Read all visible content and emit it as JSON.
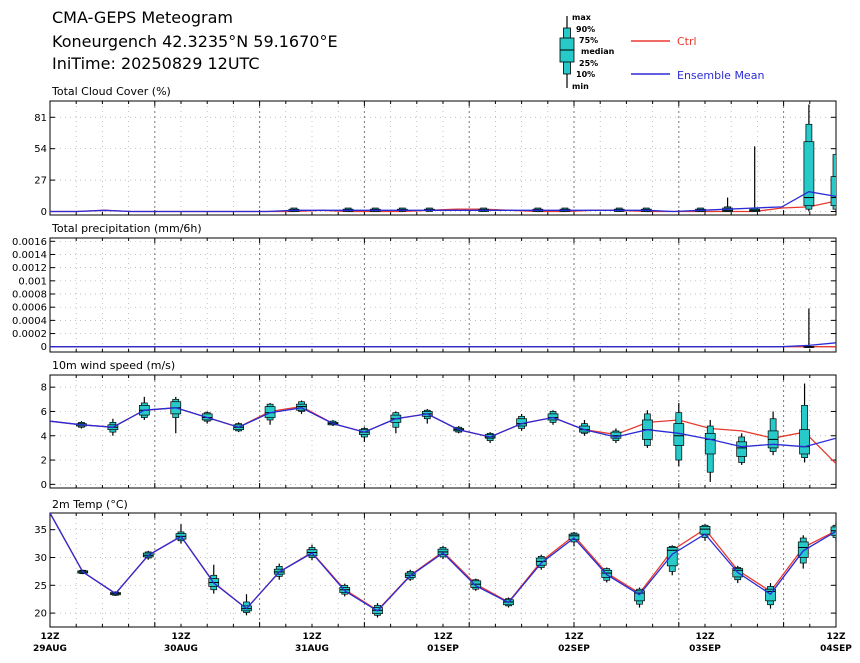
{
  "header": {
    "line1": "CMA-GEPS Meteogram",
    "line2": "Koneurgench 42.3235°N 59.1670°E",
    "line3": "IniTime: 20250829 12UTC"
  },
  "legend": {
    "box_labels": [
      "max",
      "90%",
      "75%",
      "median",
      "25%",
      "10%",
      "min"
    ],
    "ctrl": "Ctrl",
    "mean": "Ensemble Mean",
    "ctrl_color": "#e8392f",
    "mean_color": "#2b2bd6",
    "box_color": "#27c9c9"
  },
  "x_ticks": [
    {
      "hour": "12Z",
      "date": "29AUG"
    },
    {
      "hour": "12Z",
      "date": "30AUG"
    },
    {
      "hour": "12Z",
      "date": "31AUG"
    },
    {
      "hour": "12Z",
      "date": "01SEP"
    },
    {
      "hour": "12Z",
      "date": "02SEP"
    },
    {
      "hour": "12Z",
      "date": "03SEP"
    },
    {
      "hour": "12Z",
      "date": "04SEP"
    }
  ],
  "chart_data": [
    {
      "type": "box",
      "title": "Total Cloud Cover (%)",
      "ylim": [
        -3,
        95
      ],
      "yticks": [
        "0",
        "27",
        "54",
        "81"
      ],
      "ctrl": [
        0,
        0,
        1,
        0,
        0,
        0,
        0,
        0,
        0,
        0,
        1,
        0,
        0,
        0,
        1,
        2,
        2,
        1,
        0,
        0,
        1,
        1,
        0,
        0,
        0,
        0,
        0,
        3,
        4,
        9
      ],
      "mean": [
        0,
        0,
        1,
        0,
        0,
        0,
        0,
        0,
        0,
        1,
        1,
        1,
        1,
        1,
        1,
        1,
        1,
        1,
        1,
        1,
        1,
        1,
        1,
        0,
        1,
        2,
        3,
        4,
        17,
        13
      ],
      "boxes": [
        {
          "i": 9,
          "min": 0,
          "p10": 0,
          "p25": 0,
          "med": 1,
          "p75": 2,
          "p90": 3,
          "max": 3
        },
        {
          "i": 11,
          "min": 0,
          "p10": 0,
          "p25": 0,
          "med": 1,
          "p75": 2,
          "p90": 3,
          "max": 3
        },
        {
          "i": 12,
          "min": 0,
          "p10": 0,
          "p25": 0,
          "med": 1,
          "p75": 2,
          "p90": 3,
          "max": 3
        },
        {
          "i": 13,
          "min": 0,
          "p10": 0,
          "p25": 1,
          "med": 1,
          "p75": 2,
          "p90": 3,
          "max": 3
        },
        {
          "i": 14,
          "min": 0,
          "p10": 0,
          "p25": 1,
          "med": 1,
          "p75": 2,
          "p90": 3,
          "max": 3
        },
        {
          "i": 16,
          "min": 0,
          "p10": 0,
          "p25": 0,
          "med": 1,
          "p75": 2,
          "p90": 3,
          "max": 3
        },
        {
          "i": 18,
          "min": 0,
          "p10": 0,
          "p25": 0,
          "med": 1,
          "p75": 2,
          "p90": 3,
          "max": 3
        },
        {
          "i": 19,
          "min": 0,
          "p10": 0,
          "p25": 0,
          "med": 1,
          "p75": 2,
          "p90": 3,
          "max": 3
        },
        {
          "i": 21,
          "min": 0,
          "p10": 0,
          "p25": 0,
          "med": 1,
          "p75": 2,
          "p90": 3,
          "max": 3
        },
        {
          "i": 22,
          "min": 0,
          "p10": 0,
          "p25": 0,
          "med": 1,
          "p75": 2,
          "p90": 3,
          "max": 3
        },
        {
          "i": 24,
          "min": 0,
          "p10": 0,
          "p25": 0,
          "med": 1,
          "p75": 2,
          "p90": 3,
          "max": 3
        },
        {
          "i": 25,
          "min": 0,
          "p10": 0,
          "p25": 0,
          "med": 1,
          "p75": 3,
          "p90": 4,
          "max": 12
        },
        {
          "i": 26,
          "min": 0,
          "p10": 0,
          "p25": 0,
          "med": 1,
          "p75": 2,
          "p90": 3,
          "max": 56
        },
        {
          "i": 28,
          "min": 0,
          "p10": 2,
          "p25": 5,
          "med": 12,
          "p75": 60,
          "p90": 75,
          "max": 92
        },
        {
          "i": 29,
          "min": 0,
          "p10": 2,
          "p25": 5,
          "med": 12,
          "p75": 30,
          "p90": 49,
          "max": 49
        }
      ]
    },
    {
      "type": "box",
      "title": "Total precipitation (mm/6h)",
      "ylim": [
        -8e-05,
        0.00165
      ],
      "yticks": [
        "0",
        "0.0002",
        "0.0004",
        "0.0006",
        "0.0008",
        "0.001",
        "0.0012",
        "0.0014",
        "0.0016"
      ],
      "ctrl": [
        0,
        0,
        0,
        0,
        0,
        0,
        0,
        0,
        0,
        0,
        0,
        0,
        0,
        0,
        0,
        0,
        0,
        0,
        0,
        0,
        0,
        0,
        0,
        0,
        0,
        0,
        0,
        0,
        0,
        0
      ],
      "mean": [
        0,
        0,
        0,
        0,
        0,
        0,
        0,
        0,
        0,
        0,
        0,
        0,
        0,
        0,
        0,
        0,
        0,
        0,
        0,
        0,
        0,
        0,
        0,
        0,
        0,
        0,
        0,
        0,
        2e-05,
        6e-05
      ],
      "boxes": [
        {
          "i": 28,
          "min": 0,
          "p10": 0,
          "p25": 0,
          "med": 0,
          "p75": 0,
          "p90": 0,
          "max": 0.00058
        }
      ]
    },
    {
      "type": "box",
      "title": "10m wind speed (m/s)",
      "ylim": [
        -0.3,
        9
      ],
      "yticks": [
        "0",
        "2",
        "4",
        "6",
        "8"
      ],
      "ctrl": [
        5.2,
        4.9,
        4.7,
        6.1,
        6.3,
        5.5,
        4.7,
        6.0,
        6.4,
        5.0,
        4.3,
        5.4,
        5.8,
        4.5,
        3.9,
        5.0,
        5.5,
        4.5,
        4.1,
        5.1,
        5.3,
        4.6,
        4.4,
        3.8,
        4.3,
        1.7
      ],
      "mean": [
        5.2,
        4.9,
        4.7,
        6.1,
        6.3,
        5.5,
        4.7,
        5.9,
        6.3,
        5.0,
        4.3,
        5.4,
        5.8,
        4.5,
        3.9,
        5.0,
        5.5,
        4.5,
        3.9,
        4.5,
        4.2,
        3.7,
        3.1,
        3.3,
        3.1,
        3.8
      ],
      "boxes": [
        {
          "i": 1,
          "min": 4.6,
          "p10": 4.7,
          "p25": 4.8,
          "med": 4.9,
          "p75": 5.0,
          "p90": 5.1,
          "max": 5.2
        },
        {
          "i": 2,
          "min": 4.0,
          "p10": 4.3,
          "p25": 4.5,
          "med": 4.7,
          "p75": 4.9,
          "p90": 5.1,
          "max": 5.4
        },
        {
          "i": 3,
          "min": 5.3,
          "p10": 5.5,
          "p25": 5.7,
          "med": 6.1,
          "p75": 6.5,
          "p90": 6.7,
          "max": 7.2
        },
        {
          "i": 4,
          "min": 4.2,
          "p10": 5.5,
          "p25": 5.8,
          "med": 6.3,
          "p75": 6.8,
          "p90": 7.0,
          "max": 7.2
        },
        {
          "i": 5,
          "min": 5.0,
          "p10": 5.2,
          "p25": 5.3,
          "med": 5.5,
          "p75": 5.8,
          "p90": 5.9,
          "max": 6.0
        },
        {
          "i": 6,
          "min": 4.3,
          "p10": 4.4,
          "p25": 4.5,
          "med": 4.7,
          "p75": 4.9,
          "p90": 5.0,
          "max": 5.1
        },
        {
          "i": 7,
          "min": 4.9,
          "p10": 5.3,
          "p25": 5.5,
          "med": 5.9,
          "p75": 6.4,
          "p90": 6.6,
          "max": 6.7
        },
        {
          "i": 8,
          "min": 5.8,
          "p10": 6.0,
          "p25": 6.1,
          "med": 6.4,
          "p75": 6.6,
          "p90": 6.8,
          "max": 6.9
        },
        {
          "i": 9,
          "min": 4.8,
          "p10": 4.9,
          "p25": 4.9,
          "med": 5.0,
          "p75": 5.1,
          "p90": 5.2,
          "max": 5.3
        },
        {
          "i": 10,
          "min": 3.5,
          "p10": 3.9,
          "p25": 4.1,
          "med": 4.3,
          "p75": 4.5,
          "p90": 4.6,
          "max": 4.7
        },
        {
          "i": 11,
          "min": 4.2,
          "p10": 4.7,
          "p25": 5.1,
          "med": 5.4,
          "p75": 5.7,
          "p90": 5.9,
          "max": 6.0
        },
        {
          "i": 12,
          "min": 5.0,
          "p10": 5.4,
          "p25": 5.6,
          "med": 5.8,
          "p75": 6.0,
          "p90": 6.1,
          "max": 6.2
        },
        {
          "i": 13,
          "min": 4.2,
          "p10": 4.3,
          "p25": 4.4,
          "med": 4.5,
          "p75": 4.6,
          "p90": 4.7,
          "max": 4.8
        },
        {
          "i": 14,
          "min": 3.4,
          "p10": 3.6,
          "p25": 3.8,
          "med": 3.9,
          "p75": 4.1,
          "p90": 4.2,
          "max": 4.3
        },
        {
          "i": 15,
          "min": 4.4,
          "p10": 4.6,
          "p25": 4.8,
          "med": 5.0,
          "p75": 5.4,
          "p90": 5.6,
          "max": 5.8
        },
        {
          "i": 16,
          "min": 4.9,
          "p10": 5.1,
          "p25": 5.3,
          "med": 5.5,
          "p75": 5.8,
          "p90": 6.0,
          "max": 6.1
        },
        {
          "i": 17,
          "min": 4.0,
          "p10": 4.2,
          "p25": 4.3,
          "med": 4.5,
          "p75": 4.8,
          "p90": 5.0,
          "max": 5.3
        },
        {
          "i": 18,
          "min": 3.4,
          "p10": 3.6,
          "p25": 3.8,
          "med": 4.0,
          "p75": 4.3,
          "p90": 4.4,
          "max": 4.6
        },
        {
          "i": 19,
          "min": 3.0,
          "p10": 3.2,
          "p25": 3.7,
          "med": 4.5,
          "p75": 5.3,
          "p90": 5.8,
          "max": 6.1
        },
        {
          "i": 20,
          "min": 1.5,
          "p10": 2.0,
          "p25": 3.2,
          "med": 4.0,
          "p75": 5.0,
          "p90": 5.9,
          "max": 6.7
        },
        {
          "i": 21,
          "min": 0.2,
          "p10": 1.0,
          "p25": 2.5,
          "med": 3.7,
          "p75": 4.2,
          "p90": 4.8,
          "max": 5.3
        },
        {
          "i": 22,
          "min": 1.6,
          "p10": 1.8,
          "p25": 2.3,
          "med": 3.0,
          "p75": 3.5,
          "p90": 3.9,
          "max": 4.2
        },
        {
          "i": 23,
          "min": 2.4,
          "p10": 2.7,
          "p25": 3.0,
          "med": 3.7,
          "p75": 4.4,
          "p90": 5.4,
          "max": 6.0
        },
        {
          "i": 24,
          "min": 1.8,
          "p10": 2.2,
          "p25": 2.5,
          "med": 3.1,
          "p75": 4.5,
          "p90": 6.5,
          "max": 8.3
        }
      ]
    },
    {
      "type": "box",
      "title": "2m Temp (°C)",
      "ylim": [
        17.5,
        38
      ],
      "yticks": [
        "20",
        "25",
        "30",
        "35"
      ],
      "ctrl": [
        38.0,
        27.4,
        23.5,
        30.4,
        33.8,
        25.5,
        20.8,
        27.4,
        30.9,
        24.2,
        20.5,
        26.8,
        31.0,
        25.2,
        22.0,
        29.3,
        33.9,
        27.2,
        23.6,
        31.3,
        35.1,
        27.7,
        23.9,
        31.8,
        34.8
      ],
      "mean": [
        38.0,
        27.4,
        23.5,
        30.4,
        33.8,
        25.4,
        20.8,
        27.4,
        30.8,
        24.0,
        20.4,
        26.7,
        30.8,
        24.9,
        21.9,
        29.0,
        33.5,
        26.9,
        23.3,
        30.6,
        34.2,
        27.3,
        23.4,
        31.2,
        34.7
      ],
      "boxes": [
        {
          "i": 1,
          "min": 27.0,
          "p10": 27.1,
          "p25": 27.2,
          "med": 27.4,
          "p75": 27.6,
          "p90": 27.7,
          "max": 27.8
        },
        {
          "i": 2,
          "min": 23.1,
          "p10": 23.2,
          "p25": 23.3,
          "med": 23.5,
          "p75": 23.7,
          "p90": 23.8,
          "max": 23.9
        },
        {
          "i": 3,
          "min": 29.6,
          "p10": 29.9,
          "p25": 30.1,
          "med": 30.4,
          "p75": 30.8,
          "p90": 31.0,
          "max": 31.2
        },
        {
          "i": 4,
          "min": 32.5,
          "p10": 33.0,
          "p25": 33.3,
          "med": 33.8,
          "p75": 34.3,
          "p90": 34.6,
          "max": 36.0
        },
        {
          "i": 5,
          "min": 23.5,
          "p10": 24.2,
          "p25": 24.8,
          "med": 25.5,
          "p75": 26.2,
          "p90": 26.8,
          "max": 28.7
        },
        {
          "i": 6,
          "min": 19.6,
          "p10": 20.1,
          "p25": 20.4,
          "med": 20.8,
          "p75": 21.3,
          "p90": 22.0,
          "max": 23.4
        },
        {
          "i": 7,
          "min": 26.0,
          "p10": 26.6,
          "p25": 27.0,
          "med": 27.4,
          "p75": 27.9,
          "p90": 28.4,
          "max": 28.9
        },
        {
          "i": 8,
          "min": 29.5,
          "p10": 30.0,
          "p25": 30.3,
          "med": 30.9,
          "p75": 31.4,
          "p90": 31.8,
          "max": 32.3
        },
        {
          "i": 9,
          "min": 23.0,
          "p10": 23.4,
          "p25": 23.7,
          "med": 24.2,
          "p75": 24.6,
          "p90": 25.0,
          "max": 25.3
        },
        {
          "i": 10,
          "min": 19.2,
          "p10": 19.6,
          "p25": 19.9,
          "med": 20.5,
          "p75": 21.0,
          "p90": 21.4,
          "max": 21.8
        },
        {
          "i": 11,
          "min": 25.8,
          "p10": 26.1,
          "p25": 26.4,
          "med": 26.8,
          "p75": 27.2,
          "p90": 27.5,
          "max": 27.8
        },
        {
          "i": 12,
          "min": 29.7,
          "p10": 30.1,
          "p25": 30.5,
          "med": 31.0,
          "p75": 31.5,
          "p90": 31.8,
          "max": 32.1
        },
        {
          "i": 13,
          "min": 24.0,
          "p10": 24.3,
          "p25": 24.6,
          "med": 25.2,
          "p75": 25.8,
          "p90": 26.0,
          "max": 26.2
        },
        {
          "i": 14,
          "min": 21.0,
          "p10": 21.3,
          "p25": 21.5,
          "med": 22.0,
          "p75": 22.4,
          "p90": 22.6,
          "max": 22.8
        },
        {
          "i": 15,
          "min": 27.8,
          "p10": 28.2,
          "p25": 28.6,
          "med": 29.3,
          "p75": 29.9,
          "p90": 30.2,
          "max": 30.5
        },
        {
          "i": 16,
          "min": 32.0,
          "p10": 32.8,
          "p25": 33.2,
          "med": 33.9,
          "p75": 34.2,
          "p90": 34.4,
          "max": 34.6
        },
        {
          "i": 17,
          "min": 25.5,
          "p10": 25.9,
          "p25": 26.4,
          "med": 27.2,
          "p75": 27.7,
          "p90": 28.0,
          "max": 28.2
        },
        {
          "i": 18,
          "min": 21.0,
          "p10": 21.6,
          "p25": 22.2,
          "med": 23.6,
          "p75": 24.0,
          "p90": 24.3,
          "max": 24.6
        },
        {
          "i": 19,
          "min": 26.8,
          "p10": 27.5,
          "p25": 28.5,
          "med": 31.3,
          "p75": 31.8,
          "p90": 32.0,
          "max": 32.2
        },
        {
          "i": 20,
          "min": 33.0,
          "p10": 33.6,
          "p25": 34.2,
          "med": 35.1,
          "p75": 35.6,
          "p90": 35.8,
          "max": 36.0
        },
        {
          "i": 21,
          "min": 25.4,
          "p10": 26.0,
          "p25": 26.5,
          "med": 27.7,
          "p75": 28.0,
          "p90": 28.2,
          "max": 28.5
        },
        {
          "i": 22,
          "min": 20.8,
          "p10": 21.5,
          "p25": 22.2,
          "med": 23.9,
          "p75": 24.3,
          "p90": 24.8,
          "max": 25.4
        },
        {
          "i": 23,
          "min": 28.0,
          "p10": 29.0,
          "p25": 30.0,
          "med": 31.8,
          "p75": 32.8,
          "p90": 33.5,
          "max": 34.0
        },
        {
          "i": 24,
          "min": 33.0,
          "p10": 33.6,
          "p25": 34.0,
          "med": 34.8,
          "p75": 35.5,
          "p90": 35.8,
          "max": 36.2
        }
      ]
    }
  ]
}
